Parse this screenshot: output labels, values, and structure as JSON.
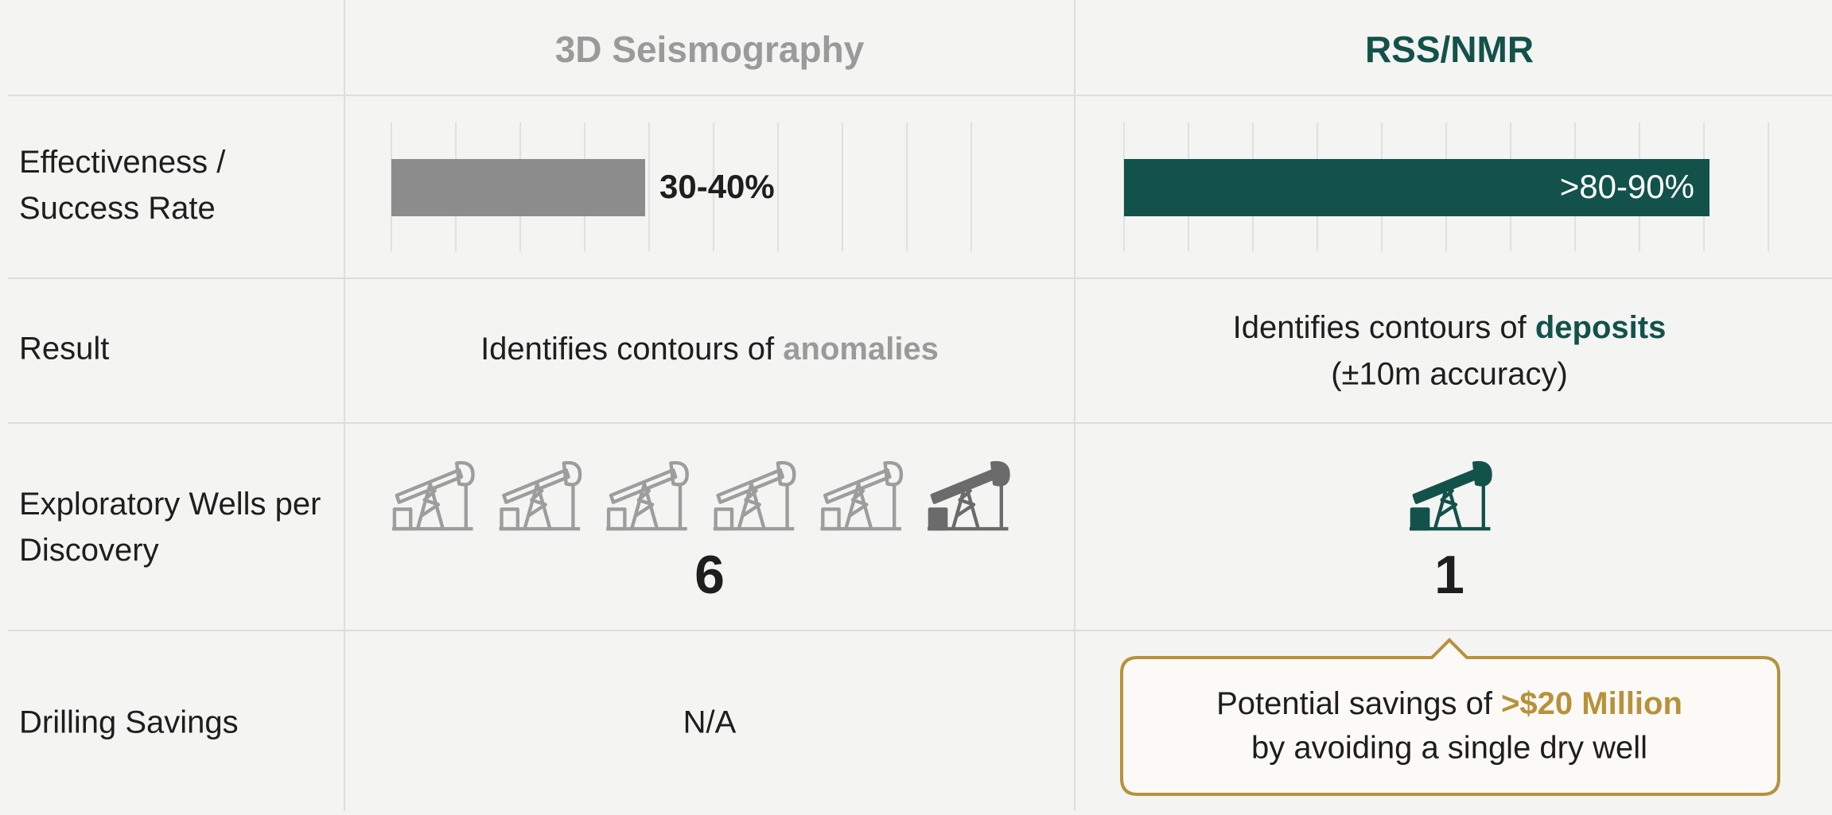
{
  "columns": [
    "3D Seismography",
    "RSS/NMR"
  ],
  "rows": [
    {
      "label": "Effectiveness / Success Rate",
      "left": "30-40%",
      "right": ">80-90%"
    },
    {
      "label": "Result",
      "left": {
        "text": "Identifies contours of ",
        "highlight": "anomalies"
      },
      "right": {
        "text": "Identifies contours of ",
        "highlight": "deposits",
        "note": "(±10m accuracy)"
      }
    },
    {
      "label": "Exploratory Wells per Discovery",
      "left": 6,
      "right": 1
    },
    {
      "label": "Drilling Savings",
      "left": "N/A",
      "right": {
        "text": "Potential savings of ",
        "highlight": ">$20 Million",
        "line2": "by avoiding a single dry well"
      }
    }
  ]
}
